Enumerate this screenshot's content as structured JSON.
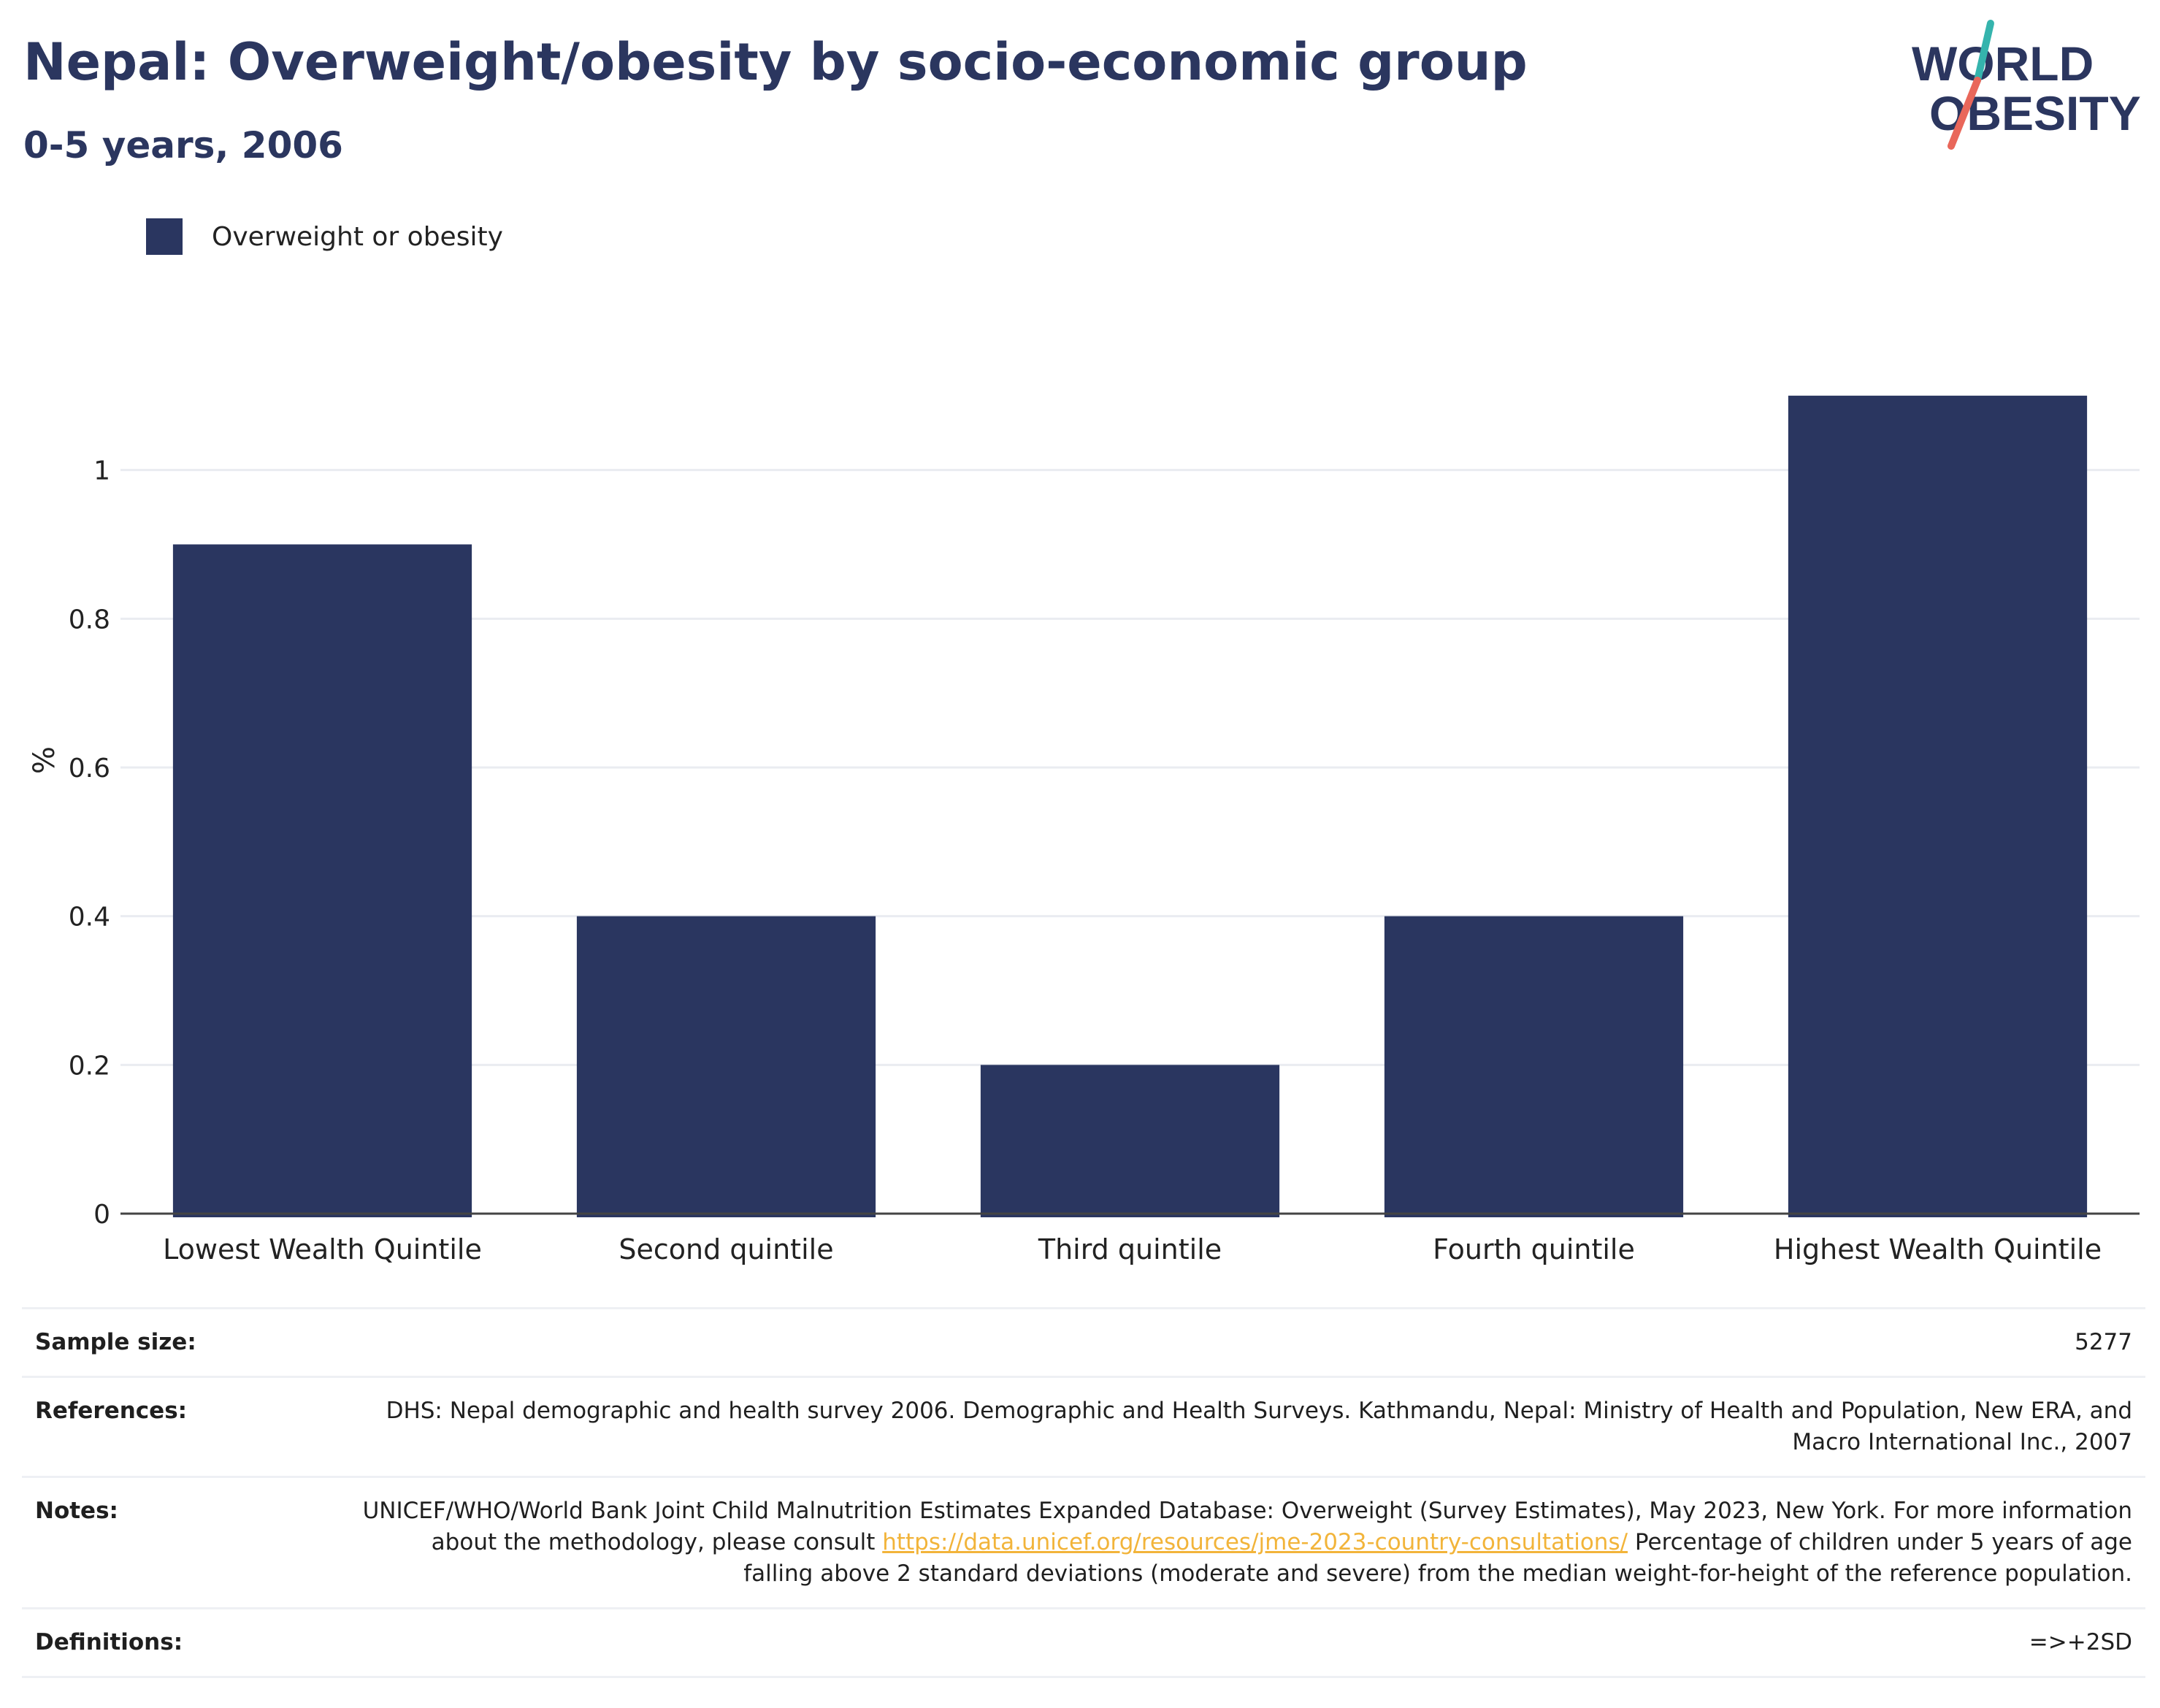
{
  "title": "Nepal: Overweight/obesity by socio-economic group",
  "subtitle": "0-5 years, 2006",
  "logo": {
    "line1": "WORLD",
    "line2": "OBESITY",
    "colors": {
      "text": "#2b365f",
      "accent_teal": "#35b4ad",
      "accent_red": "#e9675a"
    }
  },
  "legend": {
    "label": "Overweight or obesity",
    "color": "#2a3660"
  },
  "chart_data": {
    "type": "bar",
    "categories": [
      "Lowest Wealth Quintile",
      "Second quintile",
      "Third quintile",
      "Fourth quintile",
      "Highest Wealth Quintile"
    ],
    "series": [
      {
        "name": "Overweight or obesity",
        "values": [
          0.9,
          0.4,
          0.2,
          0.4,
          1.1
        ],
        "color": "#2a3660"
      }
    ],
    "ylabel": "%",
    "ylim": [
      0,
      1.2
    ],
    "yticks": [
      0,
      0.2,
      0.4,
      0.6,
      0.8,
      1
    ],
    "grid": true,
    "legend_position": "top-left"
  },
  "info": {
    "sample_size": {
      "label": "Sample size:",
      "value": "5277"
    },
    "references": {
      "label": "References:",
      "value": "DHS: Nepal demographic and health survey 2006. Demographic and Health Surveys. Kathmandu, Nepal: Ministry of Health and Population, New ERA, and Macro International Inc., 2007"
    },
    "notes": {
      "label": "Notes:",
      "text_before": "UNICEF/WHO/World Bank Joint Child Malnutrition Estimates Expanded Database: Overweight (Survey Estimates), May 2023, New York. For more information about the methodology, please consult ",
      "link": "https://data.unicef.org/resources/jme-2023-country-consultations/",
      "text_after": " Percentage of children under 5 years of age falling above 2 standard deviations (moderate and severe) from the median weight-for-height of the reference population."
    },
    "definitions": {
      "label": "Definitions:",
      "value": "=>+2SD"
    }
  }
}
